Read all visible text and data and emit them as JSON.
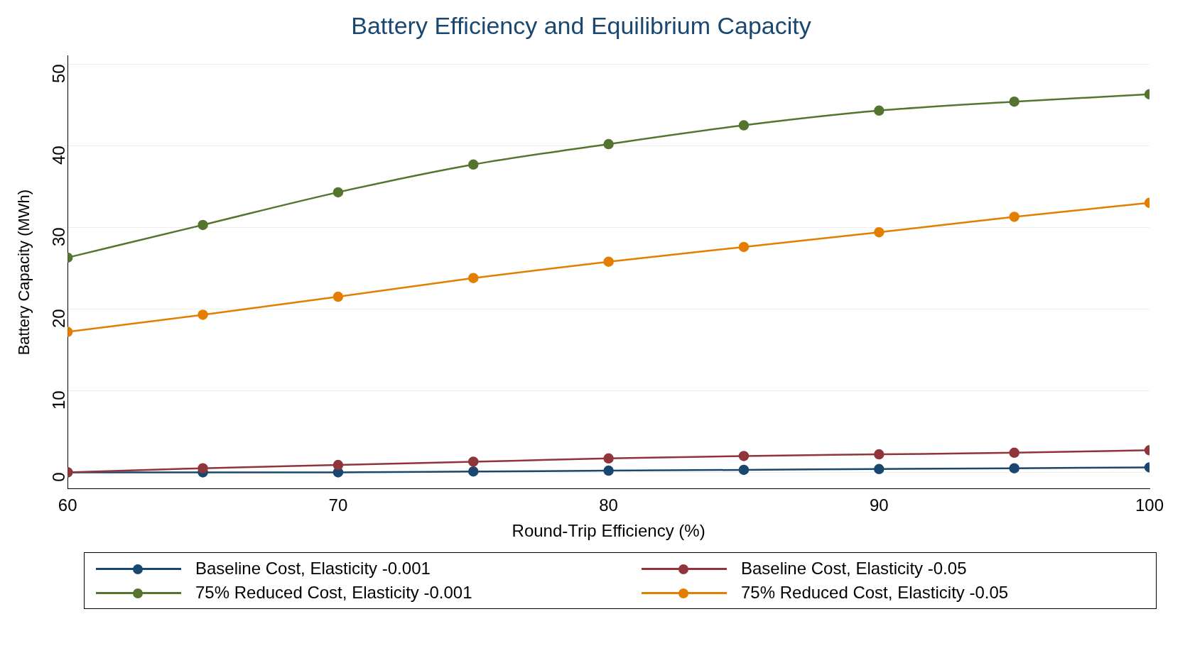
{
  "chart_data": {
    "type": "line",
    "title": "Battery Efficiency and Equilibrium Capacity",
    "xlabel": "Round-Trip Efficiency (%)",
    "ylabel": "Battery Capacity (MWh)",
    "x": [
      60,
      65,
      70,
      75,
      80,
      85,
      90,
      95,
      100
    ],
    "series": [
      {
        "name": "Baseline Cost, Elasticity -0.001",
        "color": "#1a476f",
        "values": [
          0,
          0,
          0,
          0.1,
          0.2,
          0.3,
          0.4,
          0.5,
          0.6
        ]
      },
      {
        "name": "Baseline Cost, Elasticity -0.05",
        "color": "#90353b",
        "values": [
          0,
          0.5,
          0.9,
          1.3,
          1.7,
          2.0,
          2.2,
          2.4,
          2.7
        ]
      },
      {
        "name": "75% Reduced Cost, Elasticity -0.001",
        "color": "#55752f",
        "values": [
          26.3,
          30.3,
          34.3,
          37.7,
          40.2,
          42.5,
          44.3,
          45.4,
          46.3
        ]
      },
      {
        "name": "75% Reduced Cost, Elasticity -0.05",
        "color": "#e37e00",
        "values": [
          17.2,
          19.3,
          21.5,
          23.8,
          25.8,
          27.6,
          29.4,
          31.3,
          33.0
        ]
      }
    ],
    "xlim": [
      60,
      100
    ],
    "xticks": [
      60,
      70,
      80,
      90,
      100
    ],
    "ylim": [
      -2,
      51
    ],
    "yticks": [
      0,
      10,
      20,
      30,
      40,
      50
    ],
    "grid": "y",
    "legend": "bottom",
    "marker": "circle",
    "line_style": "solid"
  }
}
